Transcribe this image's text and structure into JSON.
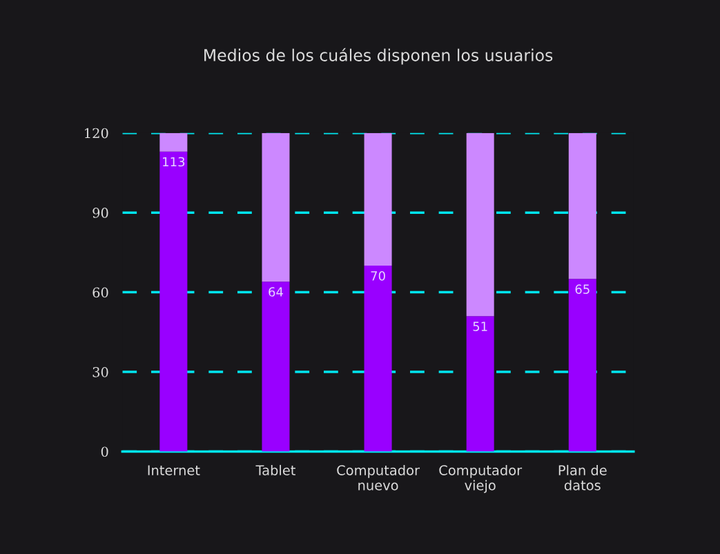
{
  "chart_data": {
    "type": "bar",
    "title": "Medios de los cuáles disponen los usuarios",
    "categories": [
      "Internet",
      "Tablet",
      "Computador\nnuevo",
      "Computador\nviejo",
      "Plan de\ndatos"
    ],
    "stacked": true,
    "series": [
      {
        "color": "#9900ff",
        "values": [
          113,
          64,
          70,
          51,
          65
        ],
        "value_labels": [
          "113",
          "64",
          "70",
          "51",
          "65"
        ]
      },
      {
        "color": "#cc88ff",
        "values": [
          7,
          56,
          50,
          69,
          55
        ]
      }
    ],
    "ylim": [
      0,
      120
    ],
    "yticks": [
      0,
      30,
      60,
      90,
      120
    ],
    "grid": "y",
    "legend": false
  }
}
